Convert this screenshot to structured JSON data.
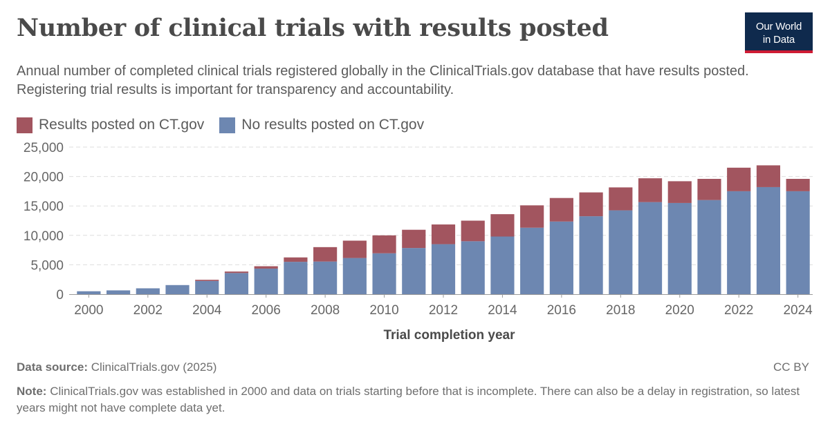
{
  "header": {
    "title": "Number of clinical trials with results posted",
    "subtitle": "Annual number of completed clinical trials registered globally in the ClinicalTrials.gov database that have results posted. Registering trial results is important for transparency and accountability.",
    "logo_line1": "Our World",
    "logo_line2": "in Data"
  },
  "footer": {
    "source_label": "Data source:",
    "source_text": "ClinicalTrials.gov (2025)",
    "license": "CC BY",
    "note_label": "Note:",
    "note_text": "ClinicalTrials.gov was established in 2000 and data on trials starting before that is incomplete. There can also be a delay in registration, so latest years might not have complete data yet."
  },
  "colors": {
    "results_posted": "#a2555f",
    "no_results": "#6d87b1",
    "logo_bg": "#0f2a4d",
    "logo_accent": "#cf1b34"
  },
  "chart_data": {
    "type": "bar",
    "stacked": true,
    "xlabel": "Trial completion year",
    "ylabel": "",
    "ylim": [
      0,
      25000
    ],
    "yticks": [
      0,
      5000,
      10000,
      15000,
      20000,
      25000
    ],
    "ytick_labels": [
      "0",
      "5,000",
      "10,000",
      "15,000",
      "20,000",
      "25,000"
    ],
    "xtick_labels": [
      "2000",
      "2002",
      "2004",
      "2006",
      "2008",
      "2010",
      "2012",
      "2014",
      "2016",
      "2018",
      "2020",
      "2022",
      "2024"
    ],
    "grid": true,
    "legend_position": "top-left",
    "categories": [
      "2000",
      "2001",
      "2002",
      "2003",
      "2004",
      "2005",
      "2006",
      "2007",
      "2008",
      "2009",
      "2010",
      "2011",
      "2012",
      "2013",
      "2014",
      "2015",
      "2016",
      "2017",
      "2018",
      "2019",
      "2020",
      "2021",
      "2022",
      "2023",
      "2024"
    ],
    "series": [
      {
        "name": "No results posted on CT.gov",
        "color": "#6d87b1",
        "values": [
          500,
          650,
          1000,
          1550,
          2250,
          3600,
          4350,
          5500,
          5550,
          6150,
          6950,
          7850,
          8500,
          9000,
          9800,
          11300,
          12350,
          13250,
          14250,
          15650,
          15500,
          16000,
          17500,
          18200,
          17500
        ]
      },
      {
        "name": "Results posted on CT.gov",
        "color": "#a2555f",
        "values": [
          0,
          0,
          0,
          0,
          200,
          250,
          400,
          750,
          2450,
          2950,
          3050,
          3100,
          3350,
          3500,
          3800,
          3800,
          4000,
          4050,
          3900,
          4050,
          3700,
          3600,
          4000,
          3700,
          2100
        ]
      }
    ]
  }
}
